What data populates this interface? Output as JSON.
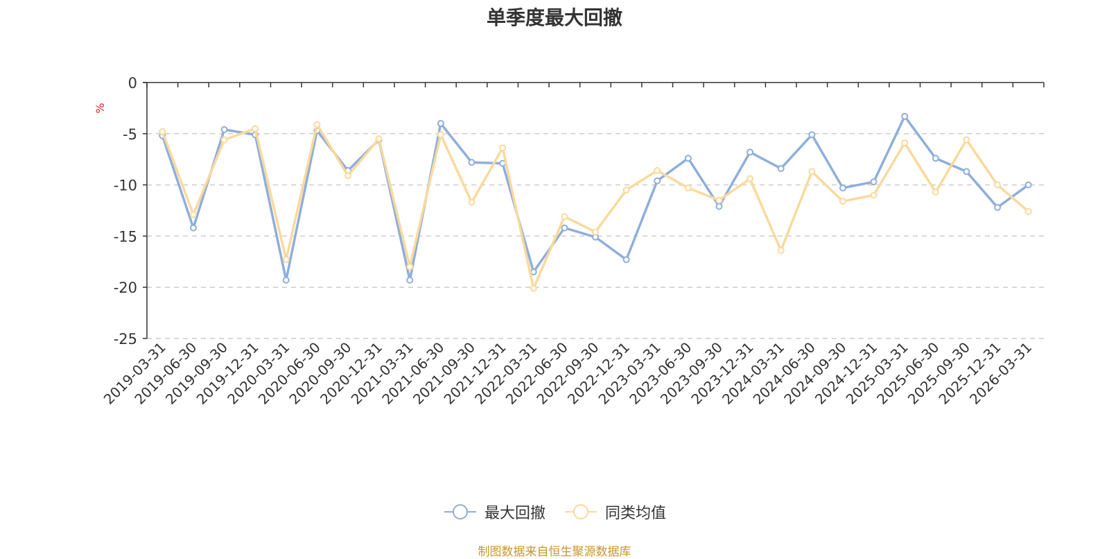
{
  "chart_data": {
    "type": "line",
    "title": "单季度最大回撤",
    "ylabel": "%",
    "ylim": [
      -25,
      0
    ],
    "yticks": [
      0,
      -5,
      -10,
      -15,
      -20,
      -25
    ],
    "grid": true,
    "legend_position": "bottom-center",
    "x": [
      "2019-03-31",
      "2019-06-30",
      "2019-09-30",
      "2019-12-31",
      "2020-03-31",
      "2020-06-30",
      "2020-09-30",
      "2020-12-31",
      "2021-03-31",
      "2021-06-30",
      "2021-09-30",
      "2021-12-31",
      "2022-03-31",
      "2022-06-30",
      "2022-09-30",
      "2022-12-31",
      "2023-03-31",
      "2023-06-30",
      "2023-09-30",
      "2023-12-31",
      "2024-03-31",
      "2024-06-30",
      "2024-09-30",
      "2024-12-31",
      "2025-03-31",
      "2025-06-30",
      "2025-09-30",
      "2025-12-31",
      "2026-03-31"
    ],
    "series": [
      {
        "name": "最大回撤",
        "color": "#8eaedb",
        "values": [
          -5.2,
          -14.2,
          -4.6,
          -5.1,
          -19.3,
          -4.7,
          -8.6,
          -5.6,
          -19.3,
          -4.0,
          -7.8,
          -7.9,
          -18.5,
          -14.2,
          -15.1,
          -17.3,
          -9.6,
          -7.4,
          -12.1,
          -6.8,
          -8.4,
          -5.1,
          -10.3,
          -9.7,
          -3.3,
          -7.4,
          -8.7,
          -12.2,
          -10.0
        ]
      },
      {
        "name": "同类均值",
        "color": "#fad99c",
        "values": [
          -4.8,
          -12.9,
          -5.6,
          -4.5,
          -17.3,
          -4.1,
          -9.1,
          -5.5,
          -18.0,
          -5.1,
          -11.7,
          -6.4,
          -20.1,
          -13.1,
          -14.6,
          -10.5,
          -8.6,
          -10.3,
          -11.5,
          -9.4,
          -16.4,
          -8.7,
          -11.6,
          -11.0,
          -5.9,
          -10.7,
          -5.6,
          -10.0,
          -12.6
        ]
      }
    ]
  },
  "source_note": "制图数据来自恒生聚源数据库"
}
